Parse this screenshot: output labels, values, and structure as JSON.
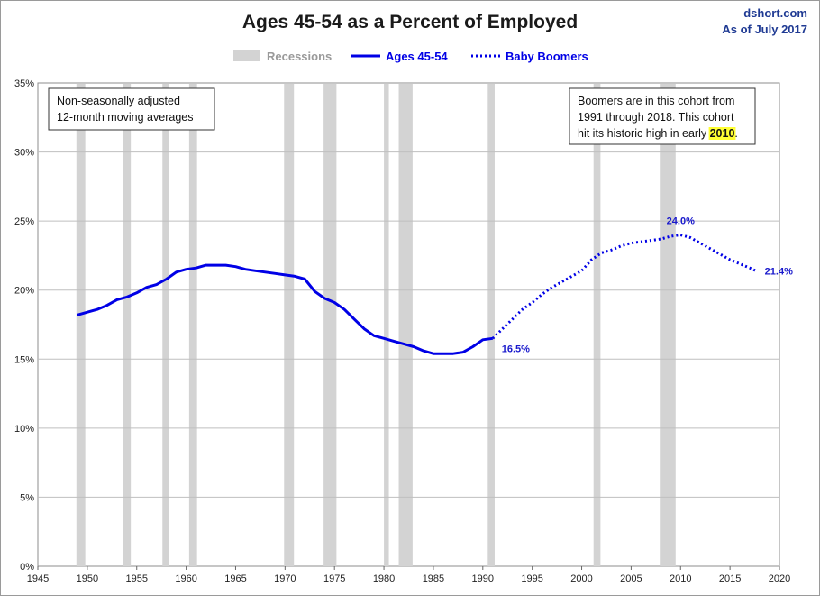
{
  "header": {
    "title": "Ages 45-54 as a Percent of Employed",
    "source": "dshort.com",
    "date": "As of July 2017"
  },
  "legend": {
    "recessions": "Recessions",
    "ages": "Ages 45-54",
    "boomers": "Baby Boomers"
  },
  "notes": {
    "left": [
      "Non-seasonally adjusted",
      "12-month moving averages"
    ],
    "right_line1": "Boomers are in this cohort from",
    "right_line2": "1991  through 2018.  This cohort",
    "right_line3_pre": "hit its historic high in early ",
    "right_line3_highlight": "2010",
    "right_line3_post": "."
  },
  "colors": {
    "line": "#0000e6",
    "recession": "#d3d3d3",
    "highlight": "#ffff33",
    "gridline": "#bfbfbf"
  },
  "chart_data": {
    "type": "line",
    "title": "Ages 45-54 as a Percent of Employed",
    "xlim": [
      1945,
      2020
    ],
    "ylim": [
      0,
      35
    ],
    "xticks": [
      "1945",
      "1950",
      "1955",
      "1960",
      "1965",
      "1970",
      "1975",
      "1980",
      "1985",
      "1990",
      "1995",
      "2000",
      "2005",
      "2010",
      "2015",
      "2020"
    ],
    "yticks": [
      "0%",
      "5%",
      "10%",
      "15%",
      "20%",
      "25%",
      "30%",
      "35%"
    ],
    "grid": "horizontal",
    "legend_position": "top",
    "recessions": [
      [
        1948.9,
        1949.8
      ],
      [
        1953.6,
        1954.4
      ],
      [
        1957.6,
        1958.3
      ],
      [
        1960.3,
        1961.1
      ],
      [
        1969.9,
        1970.9
      ],
      [
        1973.9,
        1975.2
      ],
      [
        1980.0,
        1980.5
      ],
      [
        1981.5,
        1982.9
      ],
      [
        1990.5,
        1991.2
      ],
      [
        2001.2,
        2001.9
      ],
      [
        2007.9,
        2009.5
      ]
    ],
    "series": [
      {
        "name": "Ages 45-54",
        "style": "solid",
        "x": [
          1949,
          1950,
          1951,
          1952,
          1953,
          1954,
          1955,
          1956,
          1957,
          1958,
          1959,
          1960,
          1961,
          1962,
          1963,
          1964,
          1965,
          1966,
          1967,
          1968,
          1969,
          1970,
          1971,
          1972,
          1973,
          1974,
          1975,
          1976,
          1977,
          1978,
          1979,
          1980,
          1981,
          1982,
          1983,
          1984,
          1985,
          1986,
          1987,
          1988,
          1989,
          1990,
          1991
        ],
        "y": [
          18.2,
          18.4,
          18.6,
          18.9,
          19.3,
          19.5,
          19.8,
          20.2,
          20.4,
          20.8,
          21.3,
          21.5,
          21.6,
          21.8,
          21.8,
          21.8,
          21.7,
          21.5,
          21.4,
          21.3,
          21.2,
          21.1,
          21.0,
          20.8,
          19.9,
          19.4,
          19.1,
          18.6,
          17.9,
          17.2,
          16.7,
          16.5,
          16.3,
          16.1,
          15.9,
          15.6,
          15.4,
          15.4,
          15.4,
          15.5,
          15.9,
          16.4,
          16.5
        ]
      },
      {
        "name": "Baby Boomers",
        "style": "dotted",
        "x": [
          1991,
          1992,
          1993,
          1994,
          1995,
          1996,
          1997,
          1998,
          1999,
          2000,
          2001,
          2002,
          2003,
          2004,
          2005,
          2006,
          2007,
          2008,
          2009,
          2010,
          2011,
          2012,
          2013,
          2014,
          2015,
          2016,
          2017,
          2017.6
        ],
        "y": [
          16.5,
          17.2,
          17.9,
          18.6,
          19.1,
          19.7,
          20.2,
          20.6,
          21.0,
          21.4,
          22.2,
          22.7,
          22.9,
          23.2,
          23.4,
          23.5,
          23.6,
          23.7,
          23.9,
          24.0,
          23.8,
          23.4,
          23.0,
          22.6,
          22.2,
          21.9,
          21.6,
          21.4
        ]
      }
    ],
    "annotations": [
      {
        "x": 1991,
        "y": 16.5,
        "text": "16.5%"
      },
      {
        "x": 2010,
        "y": 24.0,
        "text": "24.0%"
      },
      {
        "x": 2017.6,
        "y": 21.4,
        "text": "21.4%"
      }
    ]
  }
}
